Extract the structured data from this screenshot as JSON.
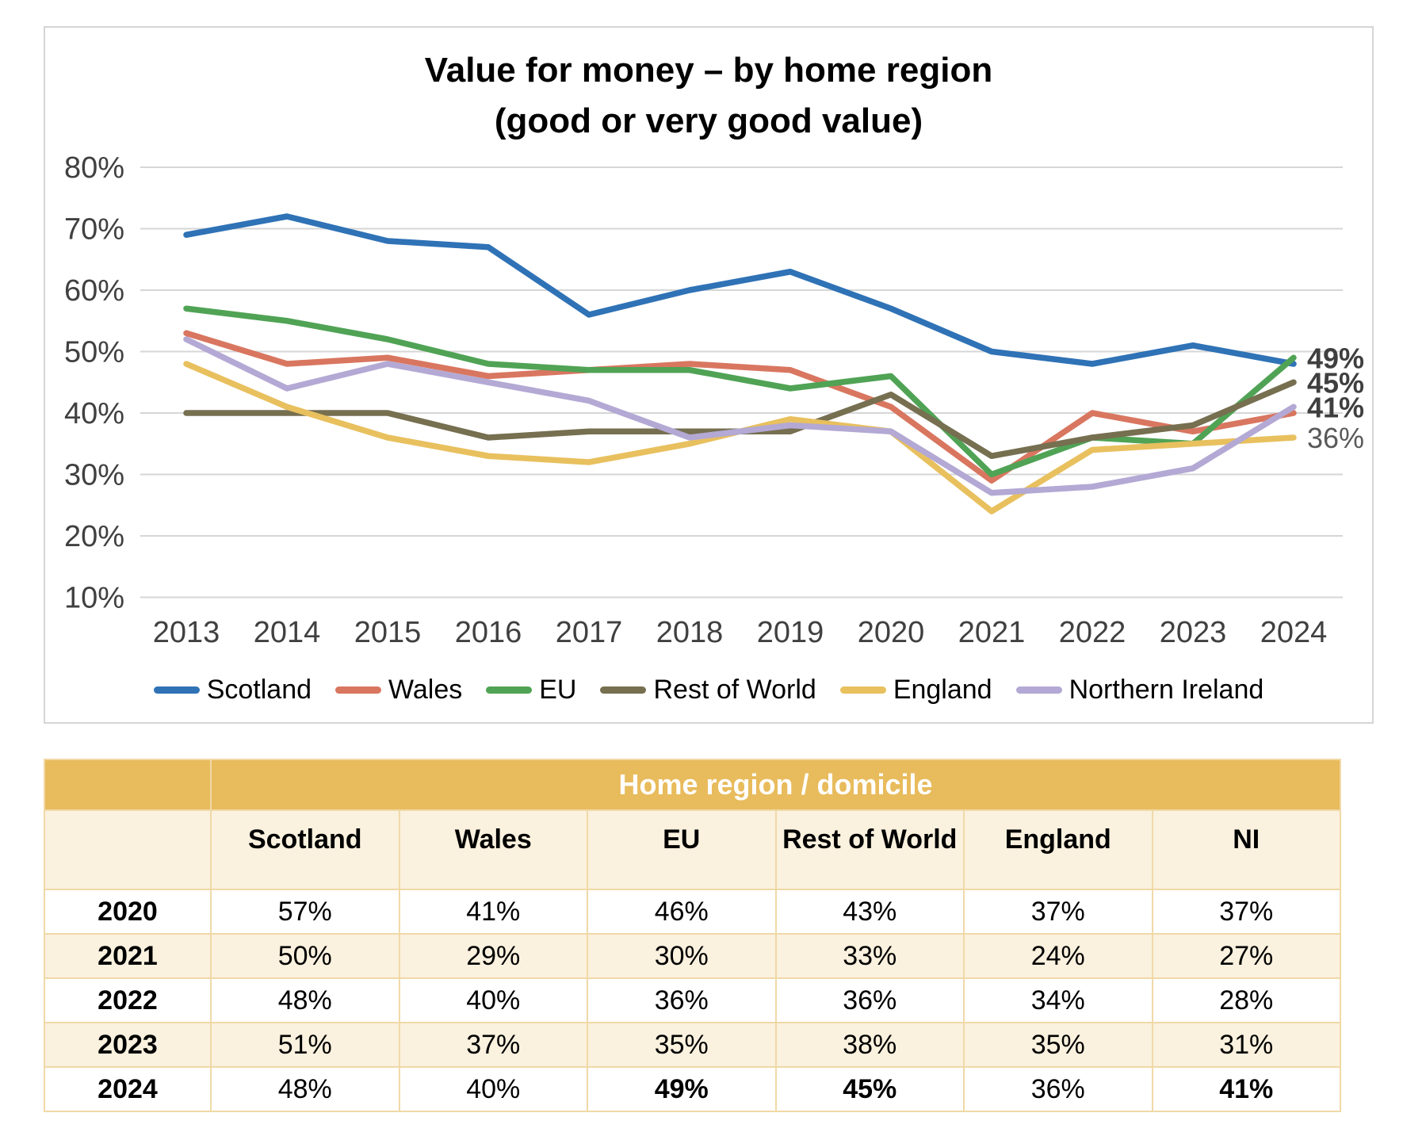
{
  "chart_data": {
    "type": "line",
    "title": "Value for money – by home region",
    "subtitle": "(good or very good value)",
    "x": [
      2013,
      2014,
      2015,
      2016,
      2017,
      2018,
      2019,
      2020,
      2021,
      2022,
      2023,
      2024
    ],
    "ylim": [
      10,
      80
    ],
    "yticks": [
      "80%",
      "70%",
      "60%",
      "50%",
      "40%",
      "30%",
      "20%",
      "10%"
    ],
    "grid": true,
    "legend_position": "bottom",
    "series": [
      {
        "name": "Scotland",
        "color": "#2F72B6",
        "values": [
          69,
          72,
          68,
          67,
          56,
          60,
          63,
          57,
          50,
          48,
          51,
          48
        ]
      },
      {
        "name": "Wales",
        "color": "#D97660",
        "values": [
          53,
          48,
          49,
          46,
          47,
          48,
          47,
          41,
          29,
          40,
          37,
          40
        ]
      },
      {
        "name": "EU",
        "color": "#50A355",
        "values": [
          57,
          55,
          52,
          48,
          47,
          47,
          44,
          46,
          30,
          36,
          35,
          49
        ],
        "end_label": {
          "text": "49%",
          "bold": true
        }
      },
      {
        "name": "Rest of World",
        "color": "#766F50",
        "values": [
          40,
          40,
          40,
          36,
          37,
          37,
          37,
          43,
          33,
          36,
          38,
          45
        ],
        "end_label": {
          "text": "45%",
          "bold": true
        }
      },
      {
        "name": "England",
        "color": "#E8C05E",
        "values": [
          48,
          41,
          36,
          33,
          32,
          35,
          39,
          37,
          24,
          34,
          35,
          36
        ],
        "end_label": {
          "text": "36%",
          "bold": false
        }
      },
      {
        "name": "Northern Ireland",
        "color": "#B3A9D4",
        "values": [
          52,
          44,
          48,
          45,
          42,
          36,
          38,
          37,
          27,
          28,
          31,
          41
        ],
        "end_label": {
          "text": "41%",
          "bold": true
        }
      }
    ],
    "colors": {
      "grid": "#D6D6D6",
      "tick_text": "#404040",
      "end_label_bold": "#3F3F3F",
      "end_label_regular": "#595959"
    }
  },
  "table": {
    "merged_header": "Home region / domicile",
    "columns": [
      "Scotland",
      "Wales",
      "EU",
      "Rest of World",
      "England",
      "NI"
    ],
    "rows": [
      {
        "year": "2020",
        "values": [
          "57%",
          "41%",
          "46%",
          "43%",
          "37%",
          "37%"
        ],
        "bold_cols": [],
        "shaded": false
      },
      {
        "year": "2021",
        "values": [
          "50%",
          "29%",
          "30%",
          "33%",
          "24%",
          "27%"
        ],
        "bold_cols": [],
        "shaded": true
      },
      {
        "year": "2022",
        "values": [
          "48%",
          "40%",
          "36%",
          "36%",
          "34%",
          "28%"
        ],
        "bold_cols": [],
        "shaded": false
      },
      {
        "year": "2023",
        "values": [
          "51%",
          "37%",
          "35%",
          "38%",
          "35%",
          "31%"
        ],
        "bold_cols": [],
        "shaded": true
      },
      {
        "year": "2024",
        "values": [
          "48%",
          "40%",
          "49%",
          "45%",
          "36%",
          "41%"
        ],
        "bold_cols": [
          2,
          3,
          5
        ],
        "shaded": false
      }
    ],
    "style": {
      "header_bg": "#E8BB5C",
      "shaded_bg": "#FAF1DE",
      "plain_bg": "#FFFFFF"
    }
  }
}
